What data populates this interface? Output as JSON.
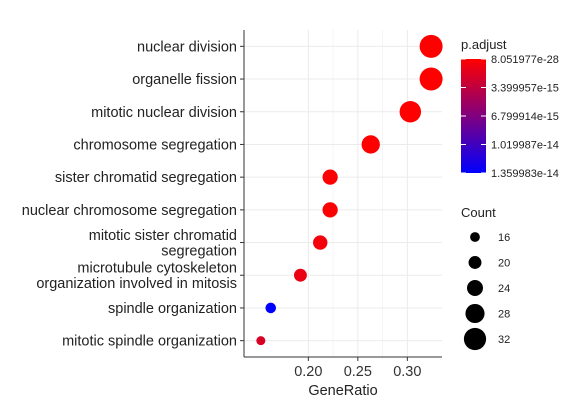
{
  "chart_data": {
    "type": "scatter",
    "title": "",
    "xlabel": "GeneRatio",
    "ylabel": "",
    "xlim": [
      0.135,
      0.335
    ],
    "x_ticks": [
      0.2,
      0.25,
      0.3
    ],
    "x_tick_labels": [
      "0.20",
      "0.25",
      "0.30"
    ],
    "grid": true,
    "categories": [
      "nuclear division",
      "organelle fission",
      "mitotic nuclear division",
      "chromosome segregation",
      "sister chromatid segregation",
      "nuclear chromosome segregation",
      "mitotic sister chromatid\nsegregation",
      "microtubule cytoskeleton\norganization involved in mitosis",
      "spindle organization",
      "mitotic spindle organization"
    ],
    "points": [
      {
        "category": "nuclear division",
        "gene_ratio": 0.324,
        "count": 33,
        "p_adjust": 1e-27
      },
      {
        "category": "organelle fission",
        "gene_ratio": 0.324,
        "count": 33,
        "p_adjust": 2e-27
      },
      {
        "category": "mitotic nuclear division",
        "gene_ratio": 0.303,
        "count": 31,
        "p_adjust": 5e-26
      },
      {
        "category": "chromosome segregation",
        "gene_ratio": 0.263,
        "count": 27,
        "p_adjust": 3e-20
      },
      {
        "category": "sister chromatid segregation",
        "gene_ratio": 0.222,
        "count": 23,
        "p_adjust": 8e-17
      },
      {
        "category": "nuclear chromosome segregation",
        "gene_ratio": 0.222,
        "count": 23,
        "p_adjust": 1e-16
      },
      {
        "category": "mitotic sister chromatid\nsegregation",
        "gene_ratio": 0.212,
        "count": 22,
        "p_adjust": 6e-16
      },
      {
        "category": "microtubule cytoskeleton\norganization involved in mitosis",
        "gene_ratio": 0.192,
        "count": 20,
        "p_adjust": 1e-15
      },
      {
        "category": "spindle organization",
        "gene_ratio": 0.162,
        "count": 17,
        "p_adjust": 1.36e-14
      },
      {
        "category": "mitotic spindle organization",
        "gene_ratio": 0.152,
        "count": 15,
        "p_adjust": 2e-15
      }
    ],
    "color_legend": {
      "title": "p.adjust",
      "position": "right",
      "low_color": "#ff0000",
      "high_color": "#0000ff",
      "min": 8.051977e-28,
      "max": 1.359983e-14,
      "tick_values": [
        8.051977e-28,
        3.399957e-15,
        6.799914e-15,
        1.019987e-14,
        1.359983e-14
      ],
      "tick_labels": [
        "8.051977e-28",
        "3.399957e-15",
        "6.799914e-15",
        "1.019987e-14",
        "1.359983e-14"
      ]
    },
    "size_legend": {
      "title": "Count",
      "position": "right",
      "values": [
        16,
        20,
        24,
        28,
        32
      ],
      "labels": [
        "16",
        "20",
        "24",
        "28",
        "32"
      ],
      "min_count": 15,
      "max_count": 33
    },
    "colors": {
      "background": "#ffffff",
      "grid": "#ebebeb",
      "axis": "#333333",
      "legend_point": "#000000"
    }
  }
}
